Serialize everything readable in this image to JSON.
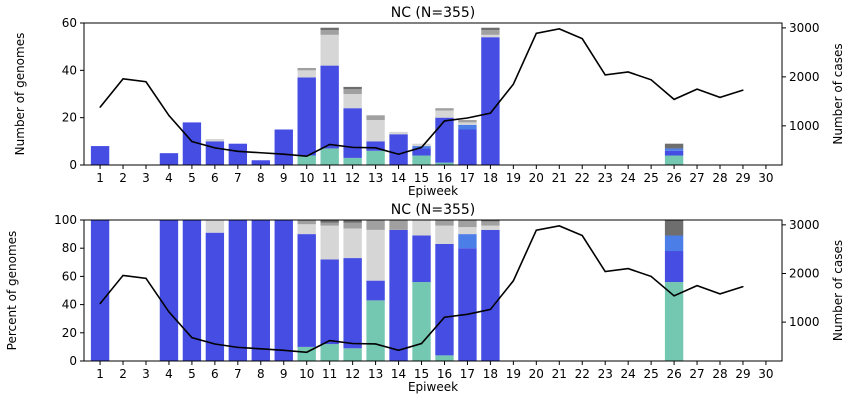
{
  "colors": {
    "teal": "#74c7b0",
    "blue": "#454de3",
    "midblue": "#4b7ee6",
    "lightgray": "#d6d6d6",
    "gray": "#a0a0a0",
    "darkgray": "#6e6e6e",
    "line": "#000000"
  },
  "chart_data": [
    {
      "type": "bar",
      "stacked": true,
      "title": "NC (N=355)",
      "xlabel": "Epiweek",
      "ylabel": "Number of genomes",
      "y2label": "Number of cases",
      "ylim": [
        0,
        60
      ],
      "yticks": [
        0,
        20,
        40,
        60
      ],
      "y2lim": [
        200,
        3100
      ],
      "y2ticks": [
        1000,
        2000,
        3000
      ],
      "x": [
        1,
        2,
        3,
        4,
        5,
        6,
        7,
        8,
        9,
        10,
        11,
        12,
        13,
        14,
        15,
        16,
        17,
        18,
        19,
        20,
        21,
        22,
        23,
        24,
        25,
        26,
        27,
        28,
        29,
        30
      ],
      "series": [
        {
          "color_key": "teal",
          "values": [
            0,
            0,
            0,
            0,
            0,
            0,
            0,
            0,
            0,
            4,
            7,
            3,
            6,
            0,
            4,
            1,
            0,
            0,
            0,
            0,
            0,
            0,
            0,
            0,
            0,
            4,
            0,
            0,
            0,
            0
          ]
        },
        {
          "color_key": "blue",
          "values": [
            8,
            0,
            0,
            5,
            18,
            10,
            9,
            2,
            15,
            33,
            35,
            21,
            4,
            13,
            3,
            19,
            15,
            54,
            0,
            0,
            0,
            0,
            0,
            0,
            0,
            2,
            0,
            0,
            0,
            0
          ]
        },
        {
          "color_key": "midblue",
          "values": [
            0,
            0,
            0,
            0,
            0,
            0,
            0,
            0,
            0,
            0,
            0,
            0,
            0,
            0,
            1,
            0,
            2,
            0,
            0,
            0,
            0,
            0,
            0,
            0,
            0,
            1,
            0,
            0,
            0,
            0
          ]
        },
        {
          "color_key": "lightgray",
          "values": [
            0,
            0,
            0,
            0,
            0,
            1,
            0,
            0,
            0,
            3,
            13,
            6,
            9,
            1,
            1,
            3,
            1,
            1,
            0,
            0,
            0,
            0,
            0,
            0,
            0,
            0,
            0,
            0,
            0,
            0
          ]
        },
        {
          "color_key": "gray",
          "values": [
            0,
            0,
            0,
            0,
            0,
            0,
            0,
            0,
            0,
            1,
            2,
            2,
            2,
            0,
            0,
            1,
            1,
            2,
            0,
            0,
            0,
            0,
            0,
            0,
            0,
            0,
            0,
            0,
            0,
            0
          ]
        },
        {
          "color_key": "darkgray",
          "values": [
            0,
            0,
            0,
            0,
            0,
            0,
            0,
            0,
            0,
            0,
            1,
            1,
            0,
            0,
            0,
            0,
            0,
            1,
            0,
            0,
            0,
            0,
            0,
            0,
            0,
            2,
            0,
            0,
            0,
            0
          ]
        }
      ],
      "line": {
        "axis": "y2",
        "x": [
          1,
          2,
          3,
          4,
          5,
          6,
          7,
          8,
          9,
          10,
          11,
          12,
          13,
          14,
          15,
          16,
          17,
          18,
          19,
          20,
          21,
          22,
          23,
          24,
          25,
          26,
          27,
          28,
          29
        ],
        "values": [
          1380,
          1960,
          1900,
          1210,
          680,
          550,
          480,
          450,
          420,
          380,
          620,
          560,
          550,
          420,
          560,
          1100,
          1160,
          1260,
          1850,
          2890,
          2980,
          2780,
          2040,
          2100,
          1940,
          1540,
          1750,
          1580,
          1730
        ]
      }
    },
    {
      "type": "bar",
      "stacked": true,
      "title": "NC (N=355)",
      "xlabel": "Epiweek",
      "ylabel": "Percent of genomes",
      "y2label": "Number of cases",
      "ylim": [
        0,
        100
      ],
      "yticks": [
        0,
        20,
        40,
        60,
        80,
        100
      ],
      "y2lim": [
        200,
        3100
      ],
      "y2ticks": [
        1000,
        2000,
        3000
      ],
      "x": [
        1,
        2,
        3,
        4,
        5,
        6,
        7,
        8,
        9,
        10,
        11,
        12,
        13,
        14,
        15,
        16,
        17,
        18,
        19,
        20,
        21,
        22,
        23,
        24,
        25,
        26,
        27,
        28,
        29,
        30
      ],
      "series": [
        {
          "color_key": "teal",
          "values": [
            0,
            0,
            0,
            0,
            0,
            0,
            0,
            0,
            0,
            10,
            12,
            9,
            43,
            0,
            56,
            4,
            0,
            0,
            0,
            0,
            0,
            0,
            0,
            0,
            0,
            56,
            0,
            0,
            0,
            0
          ]
        },
        {
          "color_key": "blue",
          "values": [
            100,
            0,
            0,
            100,
            100,
            91,
            100,
            100,
            100,
            80,
            60,
            64,
            14,
            93,
            33,
            79,
            80,
            93,
            0,
            0,
            0,
            0,
            0,
            0,
            0,
            22,
            0,
            0,
            0,
            0
          ]
        },
        {
          "color_key": "midblue",
          "values": [
            0,
            0,
            0,
            0,
            0,
            0,
            0,
            0,
            0,
            0,
            0,
            0,
            0,
            0,
            0,
            0,
            10,
            0,
            0,
            0,
            0,
            0,
            0,
            0,
            0,
            11,
            0,
            0,
            0,
            0
          ]
        },
        {
          "color_key": "lightgray",
          "values": [
            0,
            0,
            0,
            0,
            0,
            9,
            0,
            0,
            0,
            7,
            24,
            21,
            36,
            0,
            11,
            13,
            5,
            3,
            0,
            0,
            0,
            0,
            0,
            0,
            0,
            0,
            0,
            0,
            0,
            0
          ]
        },
        {
          "color_key": "gray",
          "values": [
            0,
            0,
            0,
            0,
            0,
            0,
            0,
            0,
            0,
            3,
            2,
            4,
            7,
            7,
            0,
            4,
            5,
            3,
            0,
            0,
            0,
            0,
            0,
            0,
            0,
            0,
            0,
            0,
            0,
            0
          ]
        },
        {
          "color_key": "darkgray",
          "values": [
            0,
            0,
            0,
            0,
            0,
            0,
            0,
            0,
            0,
            0,
            2,
            2,
            0,
            0,
            0,
            0,
            0,
            1,
            0,
            0,
            0,
            0,
            0,
            0,
            0,
            11,
            0,
            0,
            0,
            0
          ]
        }
      ],
      "line": {
        "axis": "y2",
        "x": [
          1,
          2,
          3,
          4,
          5,
          6,
          7,
          8,
          9,
          10,
          11,
          12,
          13,
          14,
          15,
          16,
          17,
          18,
          19,
          20,
          21,
          22,
          23,
          24,
          25,
          26,
          27,
          28,
          29
        ],
        "values": [
          1380,
          1960,
          1900,
          1210,
          680,
          550,
          480,
          450,
          420,
          380,
          620,
          560,
          550,
          420,
          560,
          1100,
          1160,
          1260,
          1850,
          2890,
          2980,
          2780,
          2040,
          2100,
          1940,
          1540,
          1750,
          1580,
          1730
        ]
      }
    }
  ]
}
